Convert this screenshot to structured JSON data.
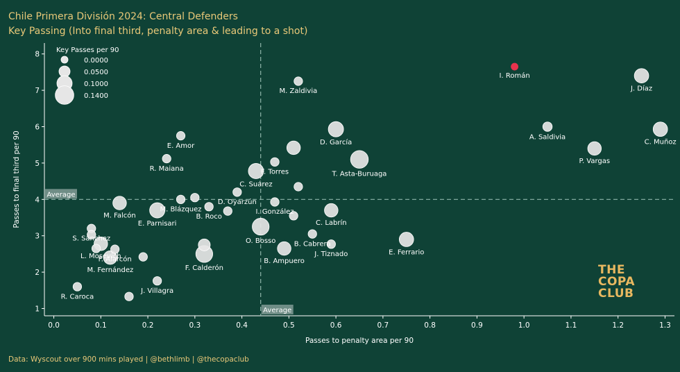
{
  "title": "Chile Primera División 2024: Central Defenders",
  "subtitle": "Key Passing (Into final third, penalty area & leading to a shot)",
  "footer": "Data: Wyscout over 900 mins played | @bethlimb | @thecopaclub",
  "logo": [
    "THE",
    "COPA",
    "CLUB"
  ],
  "colors": {
    "background": "#0f4236",
    "point": "#e6e6e6",
    "highlight": "#e8334d",
    "accent": "#e8c878"
  },
  "chart_data": {
    "type": "scatter",
    "xlabel": "Passes to penalty area per 90",
    "ylabel": "Passes to final third per 90",
    "xlim": [
      -0.02,
      1.32
    ],
    "ylim": [
      0.8,
      8.3
    ],
    "xticks": [
      0.0,
      0.1,
      0.2,
      0.3,
      0.4,
      0.5,
      0.6,
      0.7,
      0.8,
      0.9,
      1.0,
      1.1,
      1.2,
      1.3
    ],
    "yticks": [
      1,
      2,
      3,
      4,
      5,
      6,
      7,
      8
    ],
    "x_average": 0.44,
    "y_average": 4.0,
    "average_label": "Average",
    "legend": {
      "title": "Key Passes per 90",
      "entries": [
        "0.0000",
        "0.0500",
        "0.1000",
        "0.1400"
      ],
      "values": [
        0.0,
        0.05,
        0.1,
        0.14
      ],
      "placement": "top-left"
    },
    "points": [
      {
        "name": "I. Román",
        "x": 0.98,
        "y": 7.65,
        "size": 0.0,
        "highlight": true
      },
      {
        "name": "J. Díaz",
        "x": 1.25,
        "y": 7.4,
        "size": 0.09
      },
      {
        "name": "M. Zaldivia",
        "x": 0.52,
        "y": 7.25,
        "size": 0.02
      },
      {
        "name": "A. Saldivia",
        "x": 1.05,
        "y": 6.0,
        "size": 0.03
      },
      {
        "name": "C. Muñoz",
        "x": 1.29,
        "y": 5.93,
        "size": 0.09
      },
      {
        "name": "D. García",
        "x": 0.6,
        "y": 5.93,
        "size": 0.1
      },
      {
        "name": "E. Amor",
        "x": 0.27,
        "y": 5.75,
        "size": 0.02
      },
      {
        "name": "P. Vargas",
        "x": 1.15,
        "y": 5.4,
        "size": 0.08
      },
      {
        "name": "F. Torres",
        "x": 0.47,
        "y": 5.03,
        "size": 0.02
      },
      {
        "name": "J. Villalobos",
        "x": 0.51,
        "y": 5.42,
        "size": 0.08,
        "label": false
      },
      {
        "name": "T. Asta-Buruaga",
        "x": 0.65,
        "y": 5.1,
        "size": 0.13
      },
      {
        "name": "R. Maiana",
        "x": 0.24,
        "y": 5.12,
        "size": 0.02
      },
      {
        "name": "C. Suárez",
        "x": 0.43,
        "y": 4.78,
        "size": 0.1
      },
      {
        "name": "M. Blázquez",
        "x": 0.27,
        "y": 4.0,
        "size": 0.02
      },
      {
        "name": "D. Oyarzún",
        "x": 0.39,
        "y": 4.2,
        "size": 0.02
      },
      {
        "name": "I. González",
        "x": 0.47,
        "y": 3.93,
        "size": 0.02
      },
      {
        "name": "E. Aravena",
        "x": 0.52,
        "y": 4.35,
        "size": 0.02,
        "label": false
      },
      {
        "name": "A. Cabral",
        "x": 0.3,
        "y": 4.05,
        "size": 0.02,
        "label": false
      },
      {
        "name": "M. Falcón",
        "x": 0.14,
        "y": 3.9,
        "size": 0.08
      },
      {
        "name": "B. Roco",
        "x": 0.33,
        "y": 3.8,
        "size": 0.02
      },
      {
        "name": "E. Parnisari",
        "x": 0.22,
        "y": 3.7,
        "size": 0.1
      },
      {
        "name": "C. Labrín",
        "x": 0.59,
        "y": 3.7,
        "size": 0.08
      },
      {
        "name": "N. Díaz",
        "x": 0.37,
        "y": 3.68,
        "size": 0.02,
        "label": false
      },
      {
        "name": "G. Morales",
        "x": 0.51,
        "y": 3.55,
        "size": 0.02,
        "label": false
      },
      {
        "name": "O. Bosso",
        "x": 0.44,
        "y": 3.25,
        "size": 0.12
      },
      {
        "name": "S. Sánchez",
        "x": 0.08,
        "y": 3.2,
        "size": 0.02
      },
      {
        "name": "B. Cabrera",
        "x": 0.55,
        "y": 3.05,
        "size": 0.02
      },
      {
        "name": "L. Mosevich",
        "x": 0.1,
        "y": 2.78,
        "size": 0.08
      },
      {
        "name": "F. Calderón",
        "x": 0.32,
        "y": 2.5,
        "size": 0.12
      },
      {
        "name": "R. Gutiérrez",
        "x": 0.32,
        "y": 2.75,
        "size": 0.06,
        "label": false
      },
      {
        "name": "F. Alarcón",
        "x": 0.13,
        "y": 2.63,
        "size": 0.02
      },
      {
        "name": "B. Ampuero",
        "x": 0.49,
        "y": 2.65,
        "size": 0.08
      },
      {
        "name": "J. Tiznado",
        "x": 0.59,
        "y": 2.77,
        "size": 0.02
      },
      {
        "name": "E. Ferrario",
        "x": 0.75,
        "y": 2.9,
        "size": 0.09
      },
      {
        "name": "M. Fernández",
        "x": 0.12,
        "y": 2.4,
        "size": 0.08
      },
      {
        "name": "C. Vilches",
        "x": 0.19,
        "y": 2.42,
        "size": 0.02,
        "label": false
      },
      {
        "name": "D. Pérez",
        "x": 0.08,
        "y": 3.03,
        "size": 0.02,
        "label": false
      },
      {
        "name": "V. Ruiz",
        "x": 0.09,
        "y": 2.65,
        "size": 0.02,
        "label": false
      },
      {
        "name": "R. Caroca",
        "x": 0.05,
        "y": 1.6,
        "size": 0.02
      },
      {
        "name": "J. Villagra",
        "x": 0.22,
        "y": 1.76,
        "size": 0.02
      },
      {
        "name": "L. Soto",
        "x": 0.16,
        "y": 1.33,
        "size": 0.02,
        "label": false
      }
    ]
  }
}
